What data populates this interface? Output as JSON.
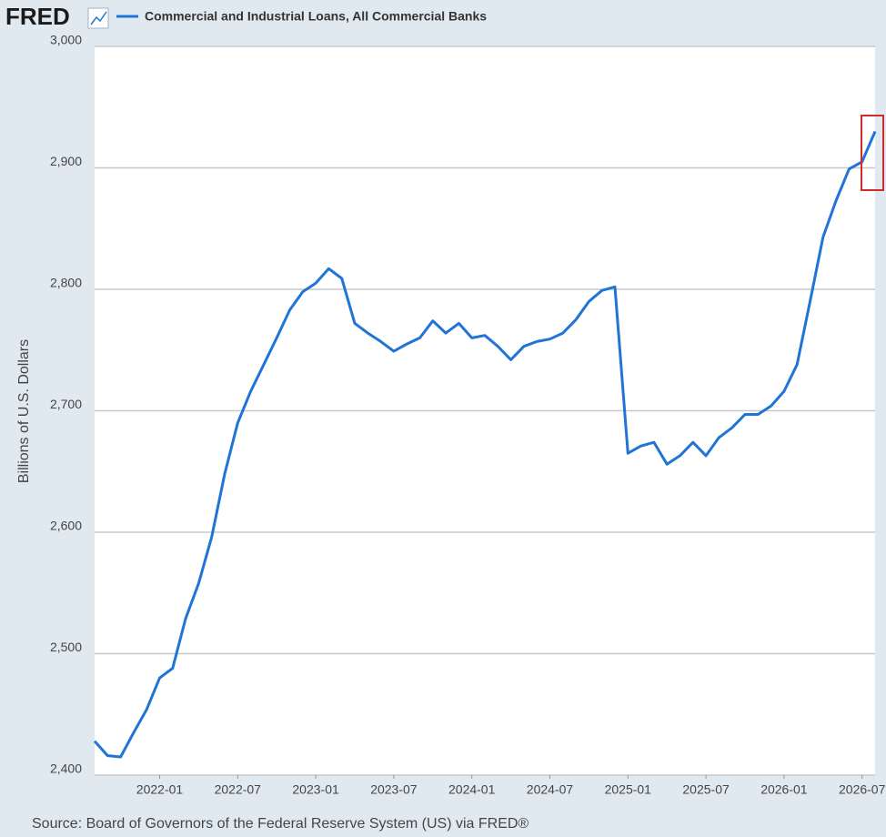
{
  "logo": "FRED",
  "chart_data": {
    "type": "line",
    "y_label": "Billions of U.S. Dollars",
    "source": "Source: Board of Governors of the Federal Reserve System (US) via FRED®",
    "x": [
      "2021-08",
      "2021-09",
      "2021-10",
      "2021-11",
      "2021-12",
      "2022-01",
      "2022-02",
      "2022-03",
      "2022-04",
      "2022-05",
      "2022-06",
      "2022-07",
      "2022-08",
      "2022-09",
      "2022-10",
      "2022-11",
      "2022-12",
      "2023-01",
      "2023-02",
      "2023-03",
      "2023-04",
      "2023-05",
      "2023-06",
      "2023-07",
      "2023-08",
      "2023-09",
      "2023-10",
      "2023-11",
      "2023-12",
      "2024-01",
      "2024-02",
      "2024-03",
      "2024-04",
      "2024-05",
      "2024-06",
      "2024-07",
      "2024-08",
      "2024-09",
      "2024-10",
      "2024-11",
      "2024-12",
      "2025-01",
      "2025-02",
      "2025-03",
      "2025-04",
      "2025-05",
      "2025-06",
      "2025-07",
      "2025-08",
      "2025-09",
      "2025-10",
      "2025-11",
      "2025-12",
      "2026-01",
      "2026-02",
      "2026-03",
      "2026-04",
      "2026-05",
      "2026-06",
      "2026-07",
      "2026-08"
    ],
    "series": [
      {
        "name": "Commercial and Industrial Loans, All Commercial Banks",
        "color": "#1f74d6",
        "values": [
          2428,
          2416,
          2415,
          2435,
          2454,
          2480,
          2488,
          2529,
          2558,
          2596,
          2648,
          2690,
          2716,
          2738,
          2760,
          2783,
          2798,
          2805,
          2817,
          2809,
          2772,
          2764,
          2757,
          2749,
          2755,
          2760,
          2774,
          2764,
          2772,
          2760,
          2762,
          2753,
          2742,
          2753,
          2757,
          2759,
          2764,
          2775,
          2790,
          2799,
          2802,
          2665,
          2671,
          2674,
          2656,
          2663,
          2674,
          2663,
          2678,
          2686,
          2697,
          2697,
          2704,
          2716,
          2738,
          2790,
          2843,
          2873,
          2899,
          2905,
          2930
        ]
      }
    ],
    "xlim": [
      "2021-08",
      "2026-08"
    ],
    "xticks": [
      "2022-01",
      "2022-07",
      "2023-01",
      "2023-07",
      "2024-01",
      "2024-07",
      "2025-01",
      "2025-07",
      "2026-01",
      "2026-07"
    ],
    "ylim": [
      2400,
      3000
    ],
    "yticks": [
      {
        "value": 2400,
        "label": "2,400"
      },
      {
        "value": 2500,
        "label": "2,500"
      },
      {
        "value": 2600,
        "label": "2,600"
      },
      {
        "value": 2700,
        "label": "2,700"
      },
      {
        "value": 2800,
        "label": "2,800"
      },
      {
        "value": 2900,
        "label": "2,900"
      },
      {
        "value": 3000,
        "label": "3,000"
      }
    ],
    "grid": true
  }
}
